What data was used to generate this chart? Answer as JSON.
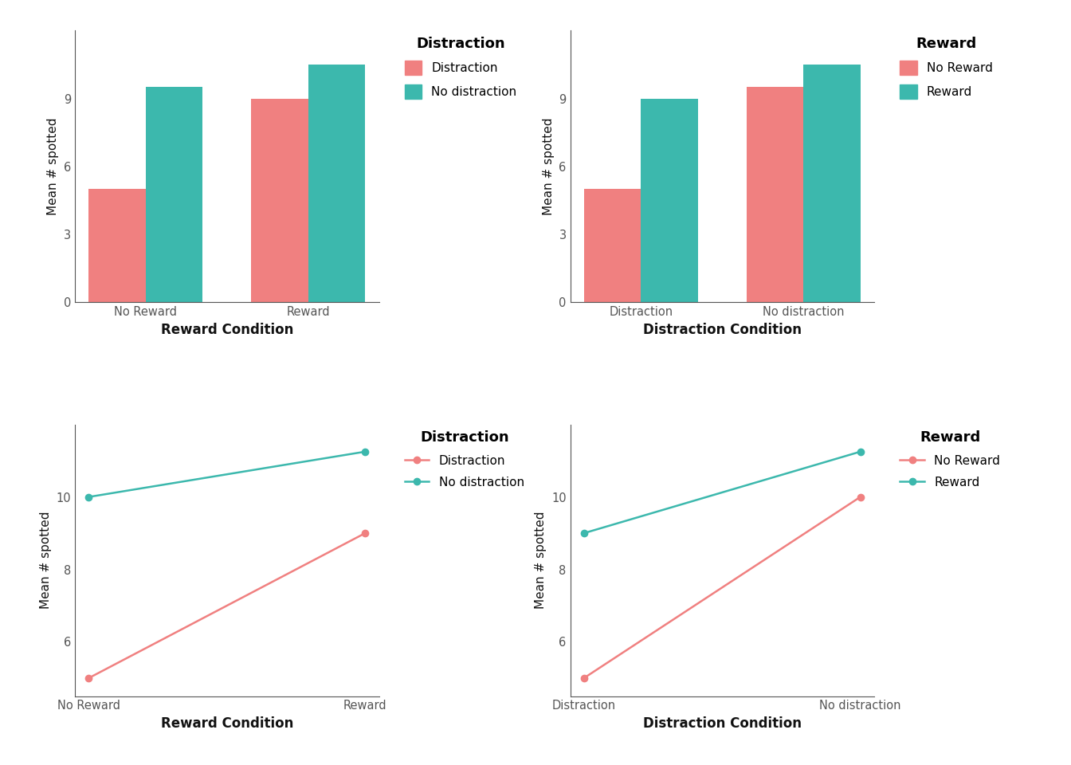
{
  "coral": "#F08080",
  "teal": "#3CB8AD",
  "bg_color": "#FFFFFF",
  "bar_top_left": {
    "xlabel": "Reward Condition",
    "ylabel": "Mean # spotted",
    "x_labels": [
      "No Reward",
      "Reward"
    ],
    "legend_title": "Distraction",
    "legend_labels": [
      "Distraction",
      "No distraction"
    ],
    "distraction_vals": [
      5.0,
      9.0
    ],
    "no_distraction_vals": [
      9.5,
      10.5
    ],
    "ylim": [
      0,
      12
    ],
    "yticks": [
      0,
      3,
      6,
      9
    ]
  },
  "bar_top_right": {
    "xlabel": "Distraction Condition",
    "ylabel": "Mean # spotted",
    "x_labels": [
      "Distraction",
      "No distraction"
    ],
    "legend_title": "Reward",
    "legend_labels": [
      "No Reward",
      "Reward"
    ],
    "no_reward_vals": [
      5.0,
      9.5
    ],
    "reward_vals": [
      9.0,
      10.5
    ],
    "ylim": [
      0,
      12
    ],
    "yticks": [
      0,
      3,
      6,
      9
    ]
  },
  "line_bot_left": {
    "xlabel": "Reward Condition",
    "ylabel": "Mean # spotted",
    "x_labels": [
      "No Reward",
      "Reward"
    ],
    "legend_title": "Distraction",
    "legend_labels": [
      "Distraction",
      "No distraction"
    ],
    "distraction_vals": [
      5.0,
      9.0
    ],
    "no_distraction_vals": [
      10.0,
      11.25
    ],
    "ylim": [
      4.5,
      12.0
    ],
    "yticks": [
      6,
      8,
      10
    ]
  },
  "line_bot_right": {
    "xlabel": "Distraction Condition",
    "ylabel": "Mean # spotted",
    "x_labels": [
      "Distraction",
      "No distraction"
    ],
    "legend_title": "Reward",
    "legend_labels": [
      "No Reward",
      "Reward"
    ],
    "no_reward_vals": [
      5.0,
      10.0
    ],
    "reward_vals": [
      9.0,
      11.25
    ],
    "ylim": [
      4.5,
      12.0
    ],
    "yticks": [
      6,
      8,
      10
    ]
  }
}
